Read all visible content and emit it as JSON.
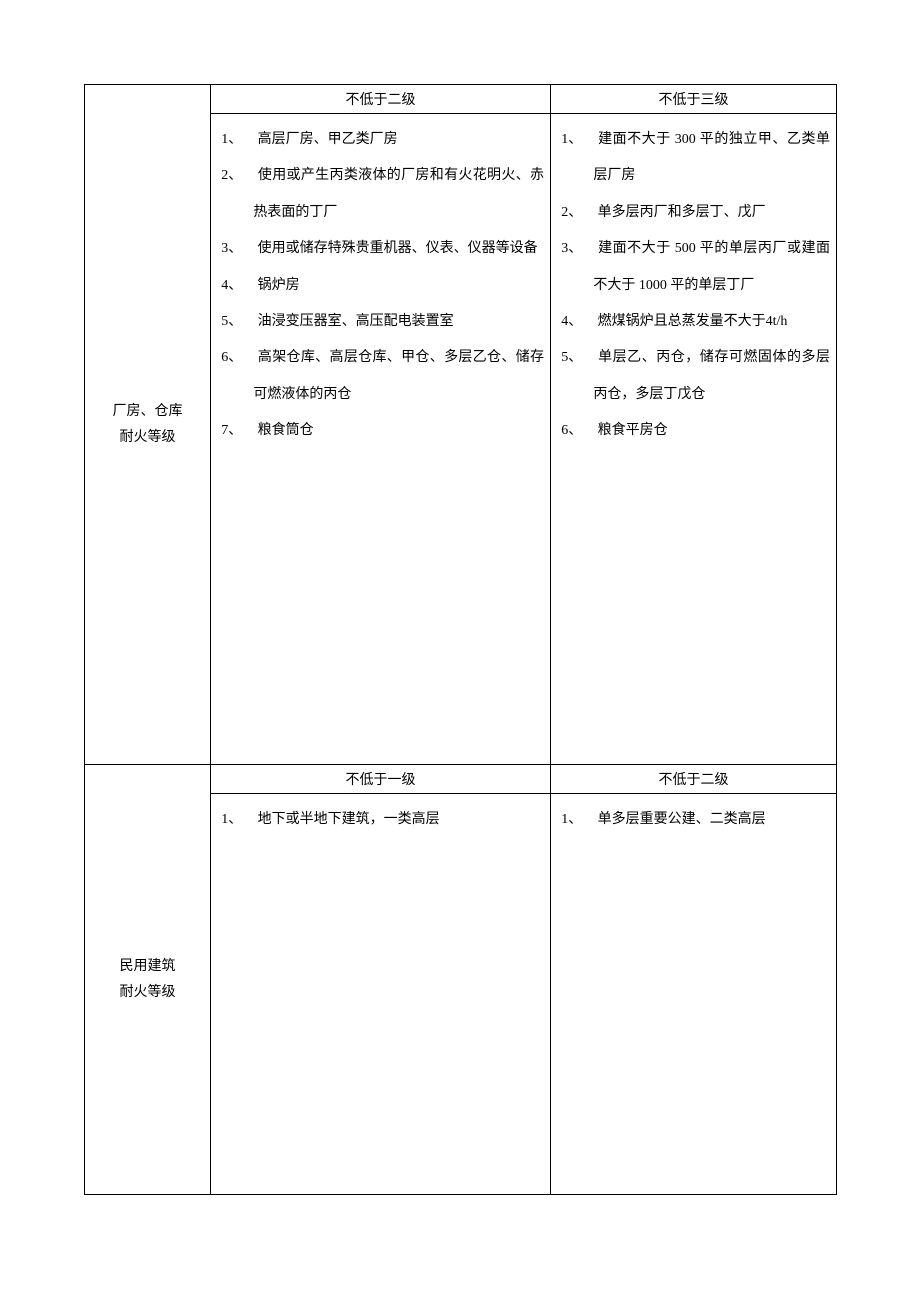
{
  "table": {
    "border_color": "#000000",
    "font_family": "SimSun",
    "font_size": 14,
    "line_height": 2.6,
    "background": "#ffffff"
  },
  "sections": [
    {
      "row_header": "厂房、仓库\n耐火等级",
      "columns": [
        {
          "header": "不低于二级",
          "items": [
            "高层厂房、甲乙类厂房",
            "使用或产生丙类液体的厂房和有火花明火、赤热表面的丁厂",
            "使用或储存特殊贵重机器、仪表、仪器等设备",
            "锅炉房",
            "油浸变压器室、高压配电装置室",
            "高架仓库、高层仓库、甲仓、多层乙仓、储存可燃液体的丙仓",
            "粮食筒仓"
          ]
        },
        {
          "header": "不低于三级",
          "items": [
            "建面不大于 300 平的独立甲、乙类单层厂房",
            "单多层丙厂和多层丁、戊厂",
            "建面不大于 500 平的单层丙厂或建面不大于 1000 平的单层丁厂",
            "燃煤锅炉且总蒸发量不大于4t/h",
            "单层乙、丙仓，储存可燃固体的多层丙仓，多层丁戊仓",
            "粮食平房仓"
          ]
        }
      ]
    },
    {
      "row_header": "民用建筑\n耐火等级",
      "columns": [
        {
          "header": "不低于一级",
          "items": [
            "地下或半地下建筑，一类高层"
          ]
        },
        {
          "header": "不低于二级",
          "items": [
            "单多层重要公建、二类高层"
          ]
        }
      ]
    }
  ]
}
